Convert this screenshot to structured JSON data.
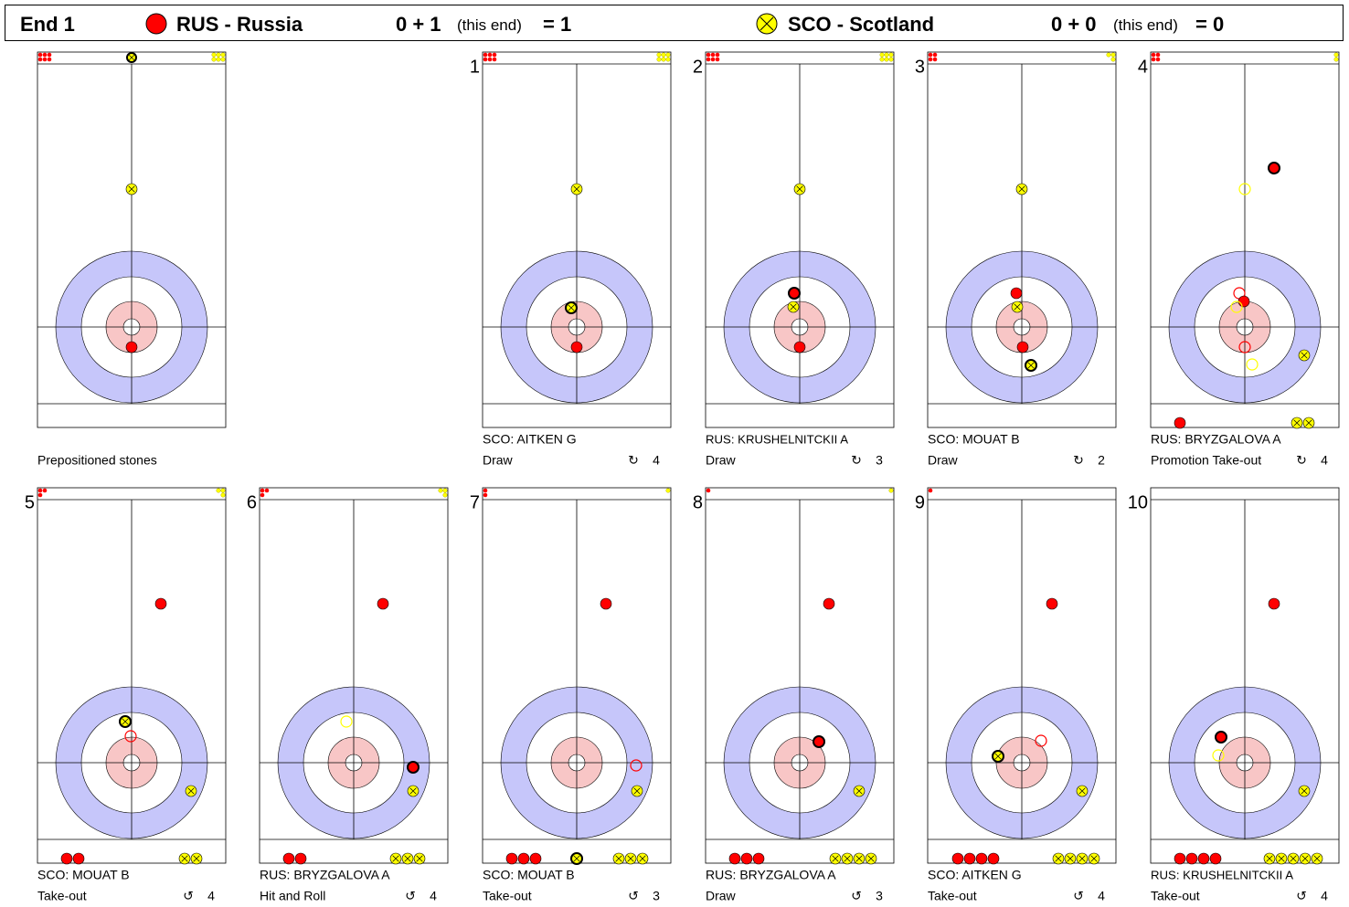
{
  "header": {
    "end": "End 1",
    "teams": [
      {
        "name": "RUS - Russia",
        "score": "0 + 1",
        "note": "(this end)",
        "total": "= 1"
      },
      {
        "name": "SCO - Scotland",
        "score": "0 + 0",
        "note": "(this end)",
        "total": "= 0"
      }
    ]
  },
  "panels": [
    {
      "caption": "Prepositioned stones"
    },
    {
      "number": "1",
      "player": "SCO: AITKEN G",
      "shot": "Draw",
      "rotation": "↻",
      "rating": "4"
    },
    {
      "number": "2",
      "player": "RUS: KRUSHELNITCKII A",
      "shot": "Draw",
      "rotation": "↻",
      "rating": "3"
    },
    {
      "number": "3",
      "player": "SCO: MOUAT B",
      "shot": "Draw",
      "rotation": "↻",
      "rating": "2"
    },
    {
      "number": "4",
      "player": "RUS: BRYZGALOVA A",
      "shot": "Promotion Take-out",
      "rotation": "↻",
      "rating": "4"
    },
    {
      "number": "5",
      "player": "SCO: MOUAT B",
      "shot": "Take-out",
      "rotation": "↺",
      "rating": "4"
    },
    {
      "number": "6",
      "player": "RUS: BRYZGALOVA A",
      "shot": "Hit and Roll",
      "rotation": "↺",
      "rating": "4"
    },
    {
      "number": "7",
      "player": "SCO: MOUAT B",
      "shot": "Take-out",
      "rotation": "↺",
      "rating": "3"
    },
    {
      "number": "8",
      "player": "RUS: BRYZGALOVA A",
      "shot": "Draw",
      "rotation": "↺",
      "rating": "3"
    },
    {
      "number": "9",
      "player": "SCO: AITKEN G",
      "shot": "Take-out",
      "rotation": "↺",
      "rating": "4"
    },
    {
      "number": "10",
      "player": "RUS: KRUSHELNITCKII A",
      "shot": "Take-out",
      "rotation": "↺",
      "rating": "4"
    }
  ]
}
